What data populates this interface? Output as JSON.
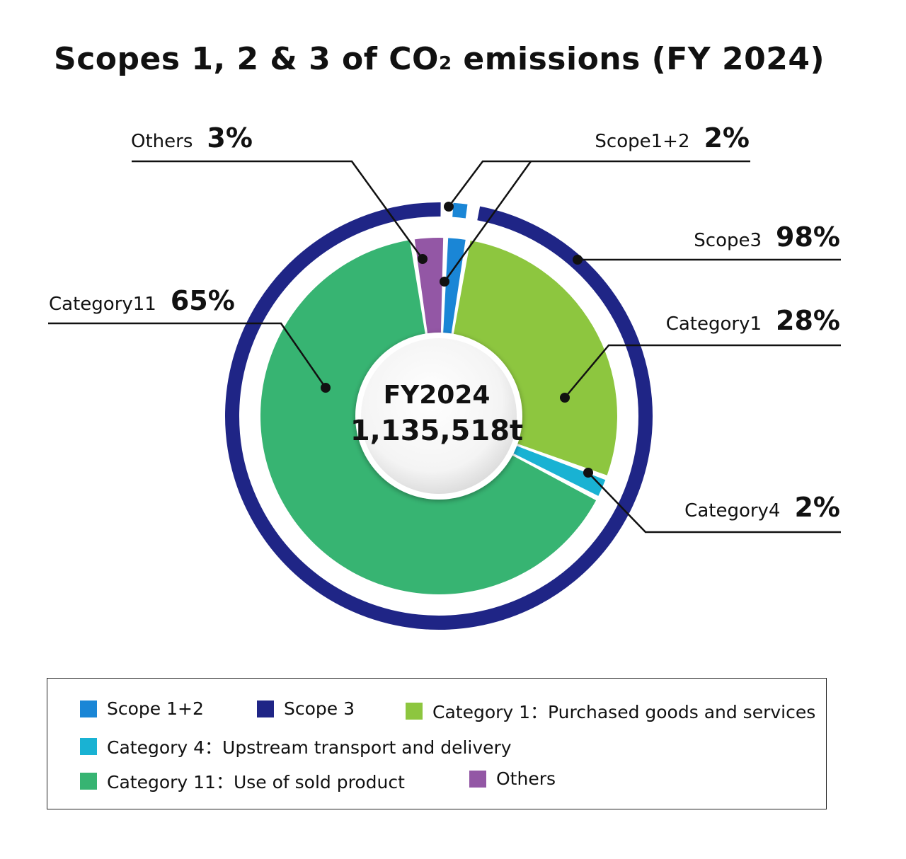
{
  "title": {
    "main": "Scopes 1, 2 & 3 of CO",
    "subscript": "2",
    "rest": " emissions (FY 2024)"
  },
  "colors": {
    "scope12": "#1a86d6",
    "scope3": "#1f2586",
    "cat1": "#8dc63f",
    "cat4": "#19b2d3",
    "cat11": "#37b472",
    "others": "#9357a5"
  },
  "center": {
    "line1": "FY2024",
    "line2": "1,135,518t"
  },
  "chart_data": {
    "type": "pie",
    "title": "Scopes 1, 2 & 3 of CO2 emissions (FY 2024)",
    "total": "1,135,518t",
    "outer_ring": [
      {
        "name": "Scope 1+2",
        "label": "Scope1+2",
        "value": 2,
        "pct": "2%"
      },
      {
        "name": "Scope 3",
        "label": "Scope3",
        "value": 98,
        "pct": "98%"
      }
    ],
    "inner_pie": [
      {
        "name": "Scope 1+2",
        "label": "Scope1+2",
        "value": 2,
        "pct": "2%"
      },
      {
        "name": "Category 1",
        "label": "Category1",
        "value": 28,
        "pct": "28%"
      },
      {
        "name": "Category 4",
        "label": "Category4",
        "value": 2,
        "pct": "2%"
      },
      {
        "name": "Category 11",
        "label": "Category11",
        "value": 65,
        "pct": "65%"
      },
      {
        "name": "Others",
        "label": "Others",
        "value": 3,
        "pct": "3%"
      }
    ]
  },
  "labels": {
    "others": {
      "name": "Others",
      "pct": "3%"
    },
    "scope12": {
      "name": "Scope1+2",
      "pct": "2%"
    },
    "scope3": {
      "name": "Scope3",
      "pct": "98%"
    },
    "cat11": {
      "name": "Category11",
      "pct": "65%"
    },
    "cat1": {
      "name": "Category1",
      "pct": "28%"
    },
    "cat4": {
      "name": "Category4",
      "pct": "2%"
    }
  },
  "legend": [
    {
      "key": "scope12",
      "label": "Scope 1+2"
    },
    {
      "key": "scope3",
      "label": "Scope 3"
    },
    {
      "key": "cat1",
      "label": "Category 1：Purchased goods and services"
    },
    {
      "key": "cat4",
      "label": "Category 4：Upstream transport and delivery"
    },
    {
      "key": "cat11",
      "label": "Category 11：Use of sold product"
    },
    {
      "key": "others",
      "label": "Others"
    }
  ]
}
